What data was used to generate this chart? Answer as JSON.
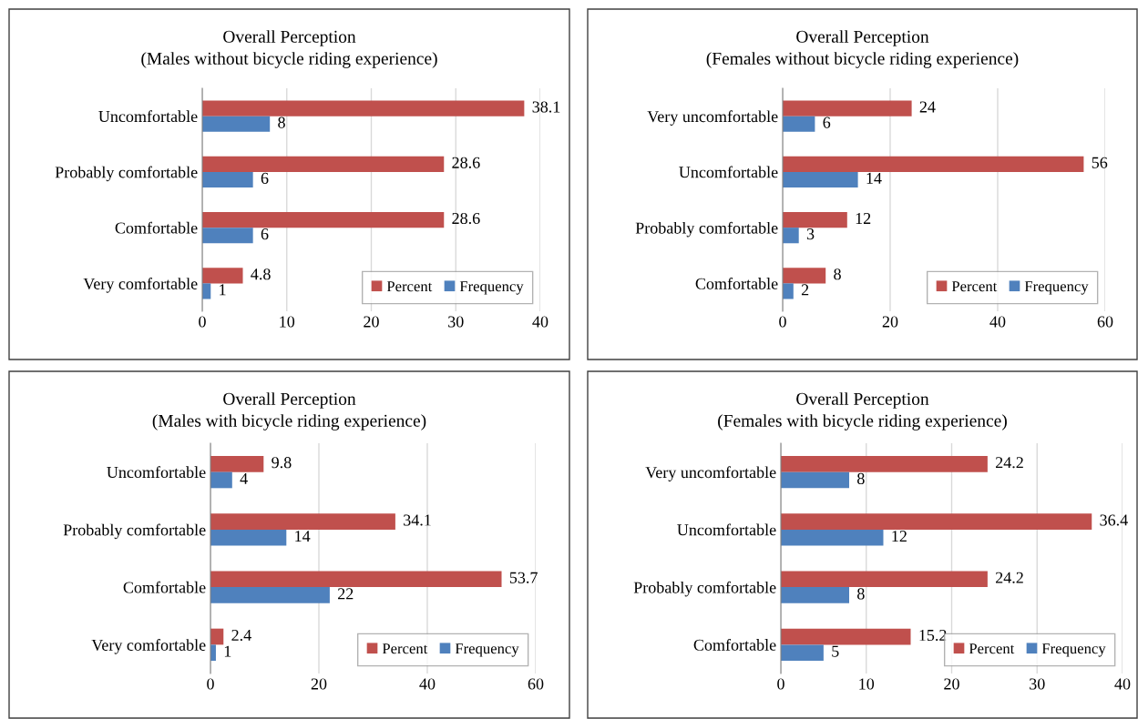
{
  "chart_data": [
    {
      "type": "bar",
      "orientation": "horizontal",
      "title": "Overall Perception",
      "subtitle": "(Males without bicycle riding experience)",
      "categories": [
        "Uncomfortable",
        "Probably comfortable",
        "Comfortable",
        "Very comfortable"
      ],
      "series": [
        {
          "name": "Percent",
          "color": "#c0504d",
          "values": [
            38.1,
            28.6,
            28.6,
            4.8
          ]
        },
        {
          "name": "Frequency",
          "color": "#4f81bd",
          "values": [
            8,
            6,
            6,
            1
          ]
        }
      ],
      "xlim": [
        0,
        40
      ],
      "xticks": [
        0,
        10,
        20,
        30,
        40
      ],
      "grid": "x",
      "legend": "bottom right",
      "data_labels": true
    },
    {
      "type": "bar",
      "orientation": "horizontal",
      "title": "Overall Perception",
      "subtitle": "(Females without bicycle riding experience)",
      "categories": [
        "Very uncomfortable",
        "Uncomfortable",
        "Probably comfortable",
        "Comfortable"
      ],
      "series": [
        {
          "name": "Percent",
          "color": "#c0504d",
          "values": [
            24,
            56,
            12,
            8
          ]
        },
        {
          "name": "Frequency",
          "color": "#4f81bd",
          "values": [
            6,
            14,
            3,
            2
          ]
        }
      ],
      "xlim": [
        0,
        60
      ],
      "xticks": [
        0,
        20,
        40,
        60
      ],
      "grid": "x",
      "legend": "bottom right",
      "data_labels": true
    },
    {
      "type": "bar",
      "orientation": "horizontal",
      "title": "Overall Perception",
      "subtitle": "(Males with bicycle riding experience)",
      "categories": [
        "Uncomfortable",
        "Probably comfortable",
        "Comfortable",
        "Very comfortable"
      ],
      "series": [
        {
          "name": "Percent",
          "color": "#c0504d",
          "values": [
            9.8,
            34.1,
            53.7,
            2.4
          ]
        },
        {
          "name": "Frequency",
          "color": "#4f81bd",
          "values": [
            4,
            14,
            22,
            1
          ]
        }
      ],
      "xlim": [
        0,
        60
      ],
      "xticks": [
        0,
        20,
        40,
        60
      ],
      "grid": "x",
      "legend": "bottom right",
      "data_labels": true
    },
    {
      "type": "bar",
      "orientation": "horizontal",
      "title": "Overall Perception",
      "subtitle": "(Females with bicycle riding experience)",
      "categories": [
        "Very uncomfortable",
        "Uncomfortable",
        "Probably comfortable",
        "Comfortable"
      ],
      "series": [
        {
          "name": "Percent",
          "color": "#c0504d",
          "values": [
            24.2,
            36.4,
            24.2,
            15.2
          ]
        },
        {
          "name": "Frequency",
          "color": "#4f81bd",
          "values": [
            8,
            12,
            8,
            5
          ]
        }
      ],
      "xlim": [
        0,
        40
      ],
      "xticks": [
        0,
        10,
        20,
        30,
        40
      ],
      "grid": "x",
      "legend": "bottom right",
      "data_labels": true
    }
  ]
}
